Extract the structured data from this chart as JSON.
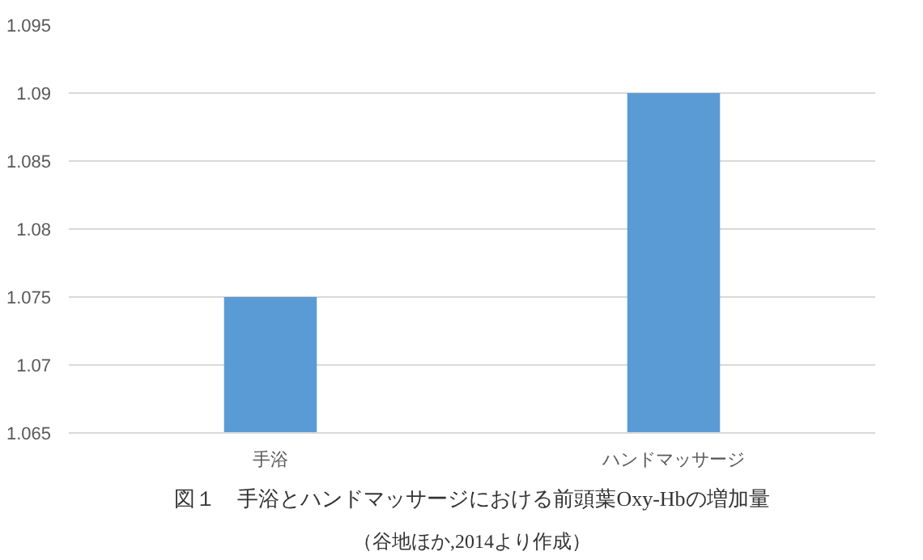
{
  "chart_data": {
    "type": "bar",
    "categories": [
      "手浴",
      "ハンドマッサージ"
    ],
    "values": [
      1.075,
      1.09
    ],
    "color": "#5b9bd5",
    "ylim": [
      1.065,
      1.095
    ],
    "yticks": [
      1.065,
      1.07,
      1.075,
      1.08,
      1.085,
      1.09,
      1.095
    ],
    "grid": "y",
    "annotations": [
      "図１　手浴とハンドマッサージにおける前頭葉Oxy-Hbの増加量",
      "（谷地ほか,2014より作成）"
    ]
  }
}
